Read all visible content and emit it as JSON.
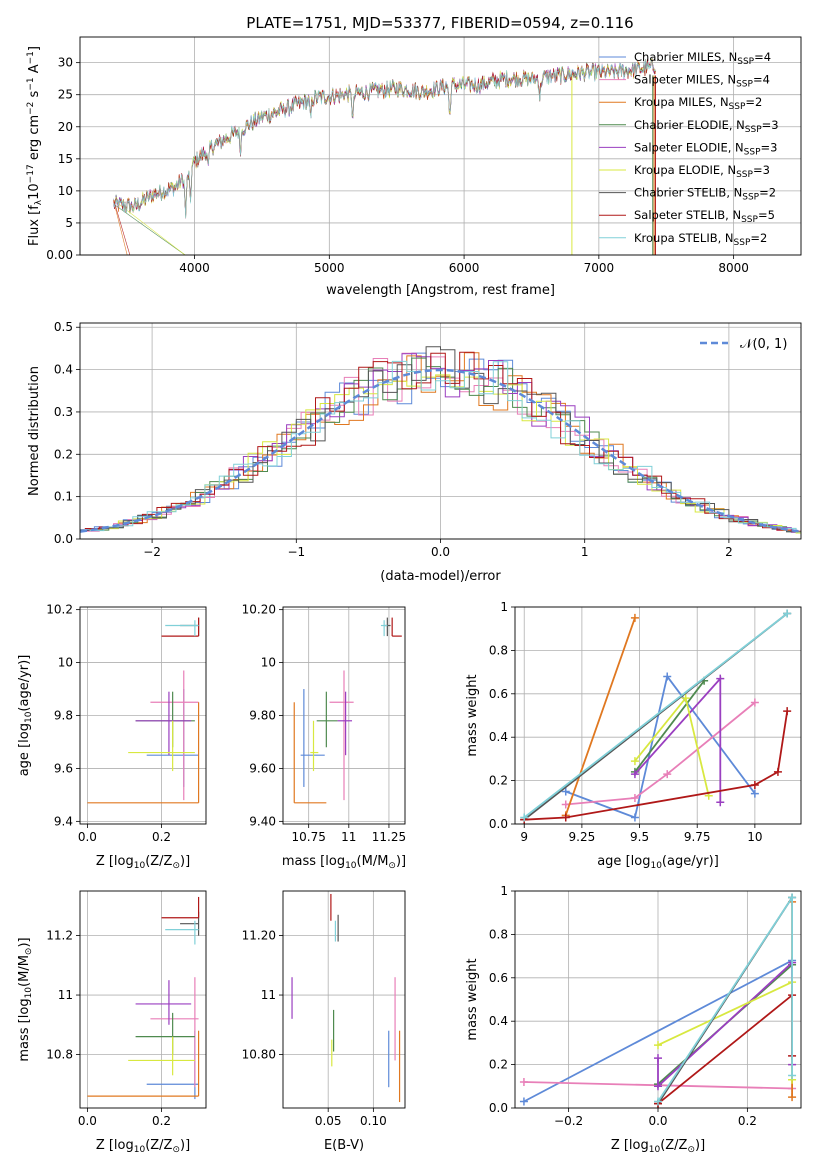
{
  "title": "PLATE=1751, MJD=53377, FIBERID=0594, z=0.116",
  "models": [
    {
      "name": "Chabrier MILES, N$_{SSP}$=4",
      "label": "Chabrier MILES, N",
      "sub": "SSP",
      "suffix": "=4",
      "color": "#5e8ad8"
    },
    {
      "name": "Salpeter MILES, N=4",
      "label": "Salpeter MILES, N",
      "sub": "SSP",
      "suffix": "=4",
      "color": "#e87fb8"
    },
    {
      "name": "Kroupa MILES, N=2",
      "label": "Kroupa MILES, N",
      "sub": "SSP",
      "suffix": "=2",
      "color": "#e07820"
    },
    {
      "name": "Chabrier ELODIE, N=3",
      "label": "Chabrier ELODIE, N",
      "sub": "SSP",
      "suffix": "=3",
      "color": "#4f8a4f"
    },
    {
      "name": "Salpeter ELODIE, N=3",
      "label": "Salpeter ELODIE, N",
      "sub": "SSP",
      "suffix": "=3",
      "color": "#9a3fc0"
    },
    {
      "name": "Kroupa ELODIE, N=3",
      "label": "Kroupa ELODIE, N",
      "sub": "SSP",
      "suffix": "=3",
      "color": "#d8e840"
    },
    {
      "name": "Chabrier STELIB, N=2",
      "label": "Chabrier STELIB, N",
      "sub": "SSP",
      "suffix": "=2",
      "color": "#555555"
    },
    {
      "name": "Salpeter STELIB, N=5",
      "label": "Salpeter STELIB, N",
      "sub": "SSP",
      "suffix": "=5",
      "color": "#b01818"
    },
    {
      "name": "Kroupa STELIB, N=2",
      "label": "Kroupa STELIB, N",
      "sub": "SSP",
      "suffix": "=2",
      "color": "#80d0d8"
    }
  ],
  "chart_data": [
    {
      "type": "line",
      "id": "spectrum",
      "xlabel": "wavelength [Angstrom, rest frame]",
      "ylabel_main": "Flux [f",
      "ylabel_sub": "λ",
      "ylabel_rest": "10",
      "ylabel_exp": "−17",
      "ylabel_tail": " erg cm",
      "ylabel_exp2": "−2",
      "ylabel_tail2": " s",
      "ylabel_exp3": "−1",
      "ylabel_tail3": " A",
      "ylabel_exp4": "−1",
      "ylabel_end": "]",
      "xlim": [
        3150,
        8500
      ],
      "ylim": [
        0,
        34
      ],
      "xticks": [
        4000,
        5000,
        6000,
        7000,
        8000
      ],
      "yticks": [
        0,
        5,
        10,
        15,
        20,
        25,
        30
      ],
      "continuum": [
        [
          3400,
          8.0
        ],
        [
          3550,
          7.5
        ],
        [
          3700,
          9.5
        ],
        [
          3850,
          10.5
        ],
        [
          3950,
          12.5
        ],
        [
          4000,
          14.5
        ],
        [
          4100,
          16.5
        ],
        [
          4300,
          19.0
        ],
        [
          4500,
          21.5
        ],
        [
          4700,
          23.0
        ],
        [
          4900,
          24.5
        ],
        [
          5100,
          25.0
        ],
        [
          5300,
          25.5
        ],
        [
          5500,
          26.0
        ],
        [
          5700,
          25.5
        ],
        [
          5900,
          26.5
        ],
        [
          6100,
          26.5
        ],
        [
          6300,
          27.5
        ],
        [
          6500,
          27.5
        ],
        [
          6700,
          28.0
        ],
        [
          6900,
          28.5
        ],
        [
          7100,
          28.5
        ],
        [
          7300,
          29.0
        ],
        [
          7420,
          29.5
        ]
      ],
      "grid": true
    },
    {
      "type": "bar",
      "id": "residuals",
      "xlabel": "(data-model)/error",
      "ylabel": "Normed distribution",
      "xlim": [
        -2.5,
        2.5
      ],
      "ylim": [
        0,
        0.51
      ],
      "xticks": [
        -2,
        -1,
        0,
        1,
        2
      ],
      "yticks": [
        0.0,
        0.1,
        0.2,
        0.3,
        0.4,
        0.5
      ],
      "legend": "𝒩(0, 1)",
      "legend_position": "top-right",
      "bin_width": 0.1,
      "grid": true
    },
    {
      "type": "scatter",
      "id": "age-vs-Z",
      "xlabel": "Z [log",
      "xlabel_sub": "10",
      "xlabel_rest": "(Z/Z",
      "xlabel_sun": "⊙",
      "xlabel_end": ")]",
      "ylabel": "age  [log",
      "ylabel_sub": "10",
      "ylabel_rest": "(age/yr)]",
      "xlim": [
        -0.02,
        0.32
      ],
      "ylim": [
        9.39,
        10.21
      ],
      "xticks": [
        0.0,
        0.2
      ],
      "yticks": [
        9.4,
        9.6,
        9.8,
        10.0,
        10.2
      ],
      "points": [
        {
          "m": 0,
          "x": 0.26,
          "xe": [
            0.16,
            0.3
          ],
          "y": 9.65,
          "ye": [
            9.53,
            9.9
          ]
        },
        {
          "m": 1,
          "x": 0.26,
          "xe": [
            0.17,
            0.3
          ],
          "y": 9.85,
          "ye": [
            9.48,
            9.97
          ]
        },
        {
          "m": 2,
          "x": 0.3,
          "xe": [
            0.0,
            0.3
          ],
          "y": 9.47,
          "ye": [
            9.47,
            9.85
          ]
        },
        {
          "m": 3,
          "x": 0.23,
          "xe": [
            0.13,
            0.29
          ],
          "y": 9.78,
          "ye": [
            9.68,
            9.89
          ]
        },
        {
          "m": 4,
          "x": 0.22,
          "xe": [
            0.13,
            0.28
          ],
          "y": 9.78,
          "ye": [
            9.65,
            9.89
          ]
        },
        {
          "m": 5,
          "x": 0.23,
          "xe": [
            0.11,
            0.29
          ],
          "y": 9.66,
          "ye": [
            9.59,
            9.78
          ]
        },
        {
          "m": 6,
          "x": 0.3,
          "xe": [
            0.25,
            0.3
          ],
          "y": 10.14,
          "ye": [
            10.1,
            10.17
          ]
        },
        {
          "m": 7,
          "x": 0.3,
          "xe": [
            0.2,
            0.3
          ],
          "y": 10.1,
          "ye": [
            10.1,
            10.17
          ]
        },
        {
          "m": 8,
          "x": 0.29,
          "xe": [
            0.21,
            0.3
          ],
          "y": 10.14,
          "ye": [
            10.1,
            10.16
          ]
        }
      ],
      "grid": true
    },
    {
      "type": "scatter",
      "id": "age-vs-mass",
      "xlabel": "mass [log",
      "xlabel_sub": "10",
      "xlabel_rest": "(M/M",
      "xlabel_sun": "⊙",
      "xlabel_end": ")]",
      "xlim": [
        10.59,
        11.35
      ],
      "ylim": [
        9.39,
        10.21
      ],
      "xticks": [
        10.75,
        11.0,
        11.25
      ],
      "yticks": [
        9.4,
        9.6,
        9.8,
        10.0,
        10.2
      ],
      "points": [
        {
          "m": 0,
          "x": 10.72,
          "xe": [
            10.7,
            10.85
          ],
          "y": 9.65,
          "ye": [
            9.53,
            9.9
          ]
        },
        {
          "m": 1,
          "x": 10.97,
          "xe": [
            10.88,
            11.03
          ],
          "y": 9.85,
          "ye": [
            9.48,
            9.97
          ]
        },
        {
          "m": 2,
          "x": 10.66,
          "xe": [
            10.66,
            10.86
          ],
          "y": 9.47,
          "ye": [
            9.47,
            9.85
          ]
        },
        {
          "m": 3,
          "x": 10.86,
          "xe": [
            10.8,
            10.93
          ],
          "y": 9.78,
          "ye": [
            9.68,
            9.89
          ]
        },
        {
          "m": 4,
          "x": 10.98,
          "xe": [
            10.93,
            11.02
          ],
          "y": 9.78,
          "ye": [
            9.65,
            9.89
          ]
        },
        {
          "m": 5,
          "x": 10.78,
          "xe": [
            10.76,
            10.81
          ],
          "y": 9.66,
          "ye": [
            9.59,
            9.78
          ]
        },
        {
          "m": 6,
          "x": 11.24,
          "xe": [
            11.22,
            11.26
          ],
          "y": 10.14,
          "ye": [
            10.1,
            10.17
          ]
        },
        {
          "m": 7,
          "x": 11.27,
          "xe": [
            11.27,
            11.33
          ],
          "y": 10.1,
          "ye": [
            10.1,
            10.17
          ]
        },
        {
          "m": 8,
          "x": 11.22,
          "xe": [
            11.2,
            11.24
          ],
          "y": 10.14,
          "ye": [
            10.1,
            10.16
          ]
        }
      ],
      "grid": true
    },
    {
      "type": "line",
      "id": "mass-weight-vs-age",
      "xlabel": "age  [log",
      "xlabel_sub": "10",
      "xlabel_rest": "(age/yr)]",
      "ylabel": "mass weight",
      "xlim": [
        8.96,
        10.2
      ],
      "ylim": [
        0,
        1
      ],
      "xticks": [
        9.0,
        9.25,
        9.5,
        9.75,
        10.0
      ],
      "yticks": [
        0.0,
        0.2,
        0.4,
        0.6,
        0.8,
        1.0
      ],
      "series": [
        {
          "m": 0,
          "x": [
            9.18,
            9.48,
            9.62,
            10.0
          ],
          "y": [
            0.15,
            0.03,
            0.68,
            0.14
          ]
        },
        {
          "m": 1,
          "x": [
            9.18,
            9.48,
            9.62,
            10.0
          ],
          "y": [
            0.09,
            0.12,
            0.23,
            0.56
          ]
        },
        {
          "m": 2,
          "x": [
            9.18,
            9.48
          ],
          "y": [
            0.04,
            0.95
          ]
        },
        {
          "m": 3,
          "x": [
            9.48,
            9.78
          ],
          "y": [
            0.24,
            0.66
          ]
        },
        {
          "m": 4,
          "x": [
            9.48,
            9.85,
            9.85
          ],
          "y": [
            0.23,
            0.67,
            0.1
          ]
        },
        {
          "m": 5,
          "x": [
            9.48,
            9.7,
            9.8
          ],
          "y": [
            0.29,
            0.58,
            0.13
          ]
        },
        {
          "m": 6,
          "x": [
            9.0,
            10.14
          ],
          "y": [
            0.02,
            0.97
          ]
        },
        {
          "m": 7,
          "x": [
            9.0,
            9.18,
            10.0,
            10.1,
            10.14
          ],
          "y": [
            0.02,
            0.03,
            0.18,
            0.24,
            0.52
          ]
        },
        {
          "m": 8,
          "x": [
            9.0,
            10.14
          ],
          "y": [
            0.03,
            0.97
          ]
        }
      ],
      "grid": true
    },
    {
      "type": "scatter",
      "id": "mass-vs-Z",
      "xlabel": "Z [log",
      "xlabel_sub": "10",
      "xlabel_rest": "(Z/Z",
      "xlabel_sun": "⊙",
      "xlabel_end": ")]",
      "ylabel": "mass [log",
      "ylabel_sub": "10",
      "ylabel_rest": "(M/M",
      "ylabel_sun": "⊙",
      "ylabel_end": ")]",
      "xlim": [
        -0.02,
        0.32
      ],
      "ylim": [
        10.62,
        11.35
      ],
      "xticks": [
        0.0,
        0.2
      ],
      "yticks": [
        10.8,
        11.0,
        11.2
      ],
      "points": [
        {
          "m": 0,
          "x": 0.29,
          "xe": [
            0.16,
            0.3
          ],
          "y": 10.7,
          "ye": [
            10.65,
            10.88
          ]
        },
        {
          "m": 1,
          "x": 0.29,
          "xe": [
            0.17,
            0.3
          ],
          "y": 10.92,
          "ye": [
            10.69,
            11.06
          ]
        },
        {
          "m": 2,
          "x": 0.3,
          "xe": [
            0.0,
            0.3
          ],
          "y": 10.66,
          "ye": [
            10.66,
            10.88
          ]
        },
        {
          "m": 3,
          "x": 0.23,
          "xe": [
            0.13,
            0.29
          ],
          "y": 10.86,
          "ye": [
            10.8,
            10.94
          ]
        },
        {
          "m": 4,
          "x": 0.22,
          "xe": [
            0.13,
            0.28
          ],
          "y": 10.97,
          "ye": [
            10.9,
            11.05
          ]
        },
        {
          "m": 5,
          "x": 0.23,
          "xe": [
            0.11,
            0.29
          ],
          "y": 10.78,
          "ye": [
            10.73,
            10.86
          ]
        },
        {
          "m": 6,
          "x": 0.3,
          "xe": [
            0.25,
            0.3
          ],
          "y": 11.24,
          "ye": [
            11.2,
            11.28
          ]
        },
        {
          "m": 7,
          "x": 0.3,
          "xe": [
            0.2,
            0.3
          ],
          "y": 11.26,
          "ye": [
            11.26,
            11.33
          ]
        },
        {
          "m": 8,
          "x": 0.29,
          "xe": [
            0.21,
            0.3
          ],
          "y": 11.22,
          "ye": [
            11.17,
            11.25
          ]
        }
      ],
      "grid": true
    },
    {
      "type": "scatter",
      "id": "mass-vs-EBV",
      "xlabel": "E(B-V)",
      "xlim": [
        0.0,
        0.135
      ],
      "ylim": [
        10.62,
        11.35
      ],
      "xticks": [
        0.05,
        0.1
      ],
      "yticks": [
        10.8,
        11.0,
        11.2
      ],
      "points": [
        {
          "m": 0,
          "x": 0.117,
          "y": 10.78,
          "ye": [
            10.69,
            10.88
          ]
        },
        {
          "m": 1,
          "x": 0.124,
          "y": 10.92,
          "ye": [
            10.78,
            11.06
          ]
        },
        {
          "m": 2,
          "x": 0.129,
          "y": 10.75,
          "ye": [
            10.64,
            10.88
          ]
        },
        {
          "m": 3,
          "x": 0.056,
          "y": 10.87,
          "ye": [
            10.81,
            10.95
          ]
        },
        {
          "m": 4,
          "x": 0.01,
          "y": 11.0,
          "ye": [
            10.92,
            11.06
          ]
        },
        {
          "m": 5,
          "x": 0.054,
          "y": 10.8,
          "ye": [
            10.76,
            10.85
          ]
        },
        {
          "m": 6,
          "x": 0.061,
          "y": 11.22,
          "ye": [
            11.18,
            11.27
          ]
        },
        {
          "m": 7,
          "x": 0.053,
          "y": 11.29,
          "ye": [
            11.25,
            11.34
          ]
        },
        {
          "m": 8,
          "x": 0.058,
          "y": 11.22,
          "ye": [
            11.18,
            11.25
          ]
        }
      ],
      "grid": true
    },
    {
      "type": "line",
      "id": "mass-weight-vs-Z",
      "xlabel": "Z [log",
      "xlabel_sub": "10",
      "xlabel_rest": "(Z/Z",
      "xlabel_sun": "⊙",
      "xlabel_end": ")]",
      "ylabel": "mass weight",
      "xlim": [
        -0.32,
        0.32
      ],
      "ylim": [
        0,
        1
      ],
      "xticks": [
        -0.2,
        0.0,
        0.2
      ],
      "yticks": [
        0.0,
        0.2,
        0.4,
        0.6,
        0.8,
        1.0
      ],
      "series": [
        {
          "m": 0,
          "x": [
            -0.3,
            0.3
          ],
          "y": [
            0.03,
            0.68
          ]
        },
        {
          "m": 1,
          "x": [
            -0.3,
            0.3
          ],
          "y": [
            0.12,
            0.09
          ]
        },
        {
          "m": 2,
          "x": [
            0.3,
            0.3
          ],
          "y": [
            0.05,
            0.95
          ]
        },
        {
          "m": 3,
          "x": [
            0.0,
            0.3
          ],
          "y": [
            0.11,
            0.66
          ]
        },
        {
          "m": 4,
          "x": [
            0.0,
            0.0,
            0.3,
            0.3
          ],
          "y": [
            0.23,
            0.1,
            0.67,
            0.2
          ]
        },
        {
          "m": 5,
          "x": [
            0.0,
            0.3,
            0.3
          ],
          "y": [
            0.29,
            0.58,
            0.13
          ]
        },
        {
          "m": 6,
          "x": [
            0.0,
            0.3
          ],
          "y": [
            0.02,
            0.97
          ]
        },
        {
          "m": 7,
          "x": [
            0.0,
            0.3,
            0.3
          ],
          "y": [
            0.02,
            0.52,
            0.24
          ]
        },
        {
          "m": 8,
          "x": [
            0.0,
            0.3,
            0.3
          ],
          "y": [
            0.03,
            0.97,
            0.15
          ]
        }
      ],
      "grid": true
    }
  ]
}
